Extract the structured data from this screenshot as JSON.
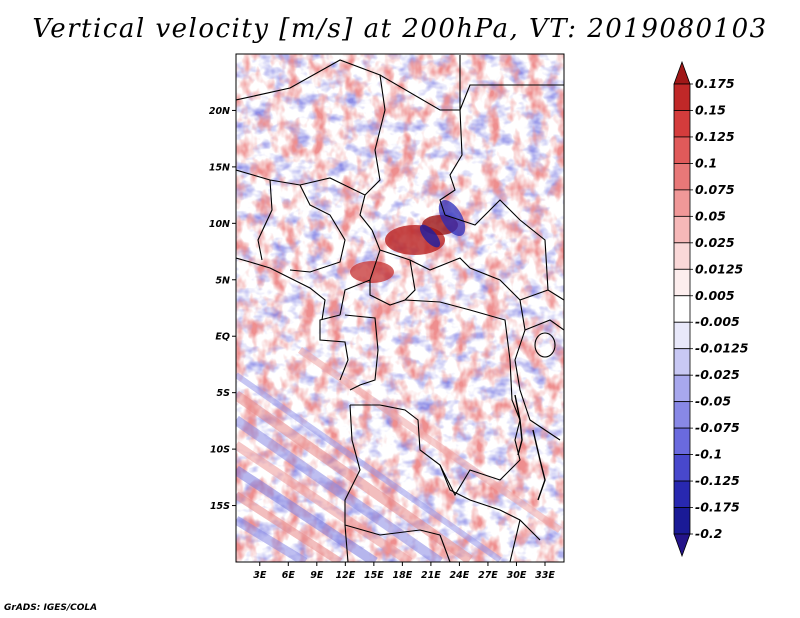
{
  "title": "Vertical velocity [m/s] at 200hPa, VT: 2019080103",
  "footer": "GrADS: IGES/COLA",
  "map": {
    "lat_ticks": [
      {
        "label": "20N",
        "lat": 20
      },
      {
        "label": "15N",
        "lat": 15
      },
      {
        "label": "10N",
        "lat": 10
      },
      {
        "label": "5N",
        "lat": 5
      },
      {
        "label": "EQ",
        "lat": 0
      },
      {
        "label": "5S",
        "lat": -5
      },
      {
        "label": "10S",
        "lat": -10
      },
      {
        "label": "15S",
        "lat": -15
      }
    ],
    "lon_ticks": [
      {
        "label": "3E",
        "lon": 3
      },
      {
        "label": "6E",
        "lon": 6
      },
      {
        "label": "9E",
        "lon": 9
      },
      {
        "label": "12E",
        "lon": 12
      },
      {
        "label": "15E",
        "lon": 15
      },
      {
        "label": "18E",
        "lon": 18
      },
      {
        "label": "21E",
        "lon": 21
      },
      {
        "label": "24E",
        "lon": 24
      },
      {
        "label": "27E",
        "lon": 27
      },
      {
        "label": "30E",
        "lon": 30
      },
      {
        "label": "33E",
        "lon": 33
      }
    ],
    "lat_range": [
      -20,
      25
    ],
    "lon_range": [
      0.5,
      35
    ]
  },
  "colorbar": {
    "levels": [
      "0.175",
      "0.15",
      "0.125",
      "0.1",
      "0.075",
      "0.05",
      "0.025",
      "0.0125",
      "0.005",
      "-0.005",
      "-0.0125",
      "-0.025",
      "-0.05",
      "-0.075",
      "-0.1",
      "-0.125",
      "-0.175",
      "-0.2"
    ],
    "colors": [
      "#a01818",
      "#c02828",
      "#d43c3c",
      "#e05a5a",
      "#e87878",
      "#f09898",
      "#f6b8b8",
      "#fad8d8",
      "#fdeeee",
      "#ffffff",
      "#e8e8fa",
      "#c8c8f4",
      "#a8a8ee",
      "#8888e6",
      "#6a6ade",
      "#4848cc",
      "#2828b0",
      "#1a1a96",
      "#24148a"
    ]
  }
}
